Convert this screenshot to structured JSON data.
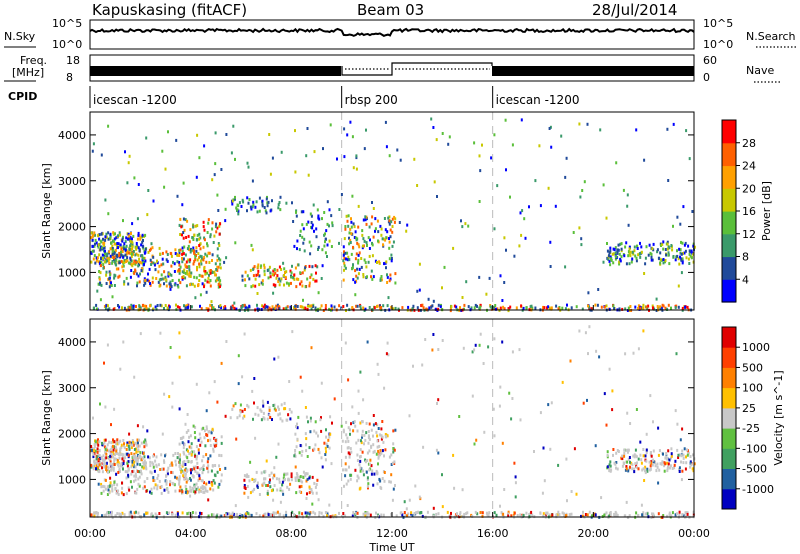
{
  "header": {
    "title": "Kapuskasing (fitACF)",
    "beam": "Beam 03",
    "date": "28/Jul/2014"
  },
  "top_panels": {
    "nsky_label": "N.Sky",
    "nsearch_label": "N.Search",
    "nsky_ticks": [
      "10^5",
      "10^0"
    ],
    "freq_label_1": "Freq.",
    "freq_label_2": "[MHz]",
    "nave_label": "Nave",
    "freq_ticks": [
      "18",
      "8"
    ],
    "nave_ticks": [
      "60",
      "0"
    ],
    "cpid_label": "CPID",
    "cpid_segments": [
      {
        "name": "icescan -1200",
        "start_hour": 0,
        "end_hour": 10
      },
      {
        "name": "rbsp 200",
        "start_hour": 10,
        "end_hour": 16
      },
      {
        "name": "icescan -1200",
        "start_hour": 16,
        "end_hour": 24
      }
    ]
  },
  "colors": {
    "power_scale": [
      "#0000ff",
      "#204a9a",
      "#3a9a6a",
      "#5abf3a",
      "#c8c800",
      "#ffa000",
      "#ff6000",
      "#ff0000"
    ],
    "velocity_scale": [
      "#0000c0",
      "#2060a0",
      "#40a060",
      "#60c040",
      "#c8c8c8",
      "#ffc000",
      "#ff8000",
      "#ff4000",
      "#e00000"
    ],
    "guide_line": "#bbbbbb"
  },
  "chart_data": [
    {
      "type": "heatmap",
      "name": "power",
      "ylabel": "Slant Range [km]",
      "y_ticks": [
        1000,
        2000,
        3000,
        4000
      ],
      "ylim": [
        180,
        4500
      ],
      "xlim": [
        0,
        24
      ],
      "colorbar": {
        "label": "Power [dB]",
        "ticks": [
          "4",
          "8",
          "12",
          "16",
          "20",
          "24",
          "28"
        ],
        "range": [
          0,
          30
        ]
      },
      "segment_boundaries_hours": [
        10,
        16
      ]
    },
    {
      "type": "heatmap",
      "name": "velocity",
      "ylabel": "Slant Range [km]",
      "y_ticks": [
        1000,
        2000,
        3000,
        4000
      ],
      "ylim": [
        180,
        4500
      ],
      "xlim": [
        0,
        24
      ],
      "colorbar": {
        "label": "Velocity [m s^-1]",
        "ticks": [
          "-1000",
          "-500",
          "-100",
          "-25",
          "25",
          "100",
          "500",
          "1000"
        ]
      },
      "segment_boundaries_hours": [
        10,
        16
      ]
    }
  ],
  "x_axis": {
    "ticks": [
      "00:00",
      "04:00",
      "08:00",
      "12:00",
      "16:00",
      "20:00",
      "00:00"
    ],
    "tick_hours": [
      0,
      4,
      8,
      12,
      16,
      20,
      24
    ],
    "label": "Time UT"
  }
}
